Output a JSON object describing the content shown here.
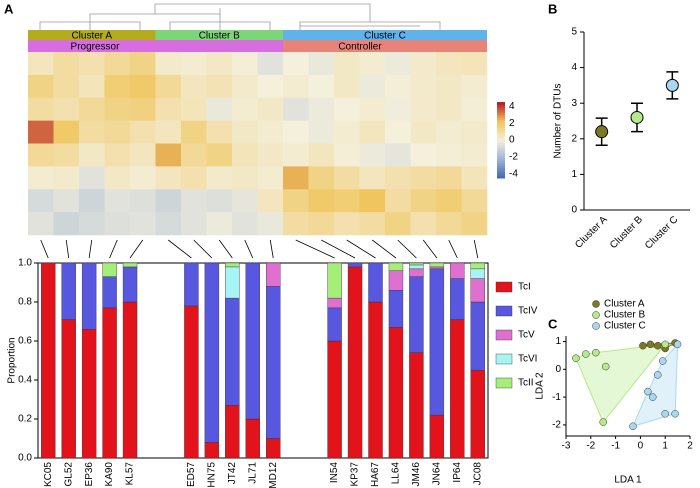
{
  "chart_data": [
    {
      "type": "heatmap",
      "panel_label": "A",
      "clusters": [
        {
          "label": "Cluster A",
          "color": "#b5ab1f"
        },
        {
          "label": "Cluster B",
          "color": "#7dd47a"
        },
        {
          "label": "Cluster C",
          "color": "#5fb2ea"
        }
      ],
      "outcomes": [
        {
          "label": "Progressor",
          "color": "#d76ee0"
        },
        {
          "label": "Controller",
          "color": "#e8837a"
        }
      ],
      "zlim": [
        -4.5,
        4.5
      ],
      "zticks": [
        4,
        2,
        0,
        -2,
        -4
      ],
      "values": [
        [
          0.5,
          1,
          0.8,
          1.2,
          1.5,
          0.3,
          0.2,
          0.4,
          0.1,
          -0.5,
          0,
          -0.3,
          0.4,
          0.2,
          -0.2,
          0.3,
          0.5,
          0.6
        ],
        [
          1.5,
          1,
          0.6,
          1.8,
          2,
          1.2,
          0.5,
          0.7,
          0.3,
          0,
          0.2,
          0,
          0.4,
          -0.2,
          0.1,
          0.3,
          0.4,
          0.2
        ],
        [
          1,
          0.8,
          1.2,
          1.5,
          1.6,
          0.8,
          0.6,
          -0.3,
          0.2,
          0.4,
          -0.5,
          -0.2,
          0,
          0.2,
          -0.1,
          0.3,
          0.4,
          0.1
        ],
        [
          3.5,
          2,
          1,
          1.2,
          0.8,
          0.5,
          1.5,
          0.8,
          0.4,
          0.2,
          0,
          -0.2,
          0.2,
          0.5,
          0,
          0.4,
          0.2,
          0.3
        ],
        [
          1.2,
          1,
          0.4,
          0.8,
          0.5,
          2.5,
          1.2,
          1.5,
          0.6,
          0.4,
          0.2,
          0.5,
          0.1,
          -0.2,
          -0.4,
          0,
          0.1,
          0.2
        ],
        [
          0.2,
          0.3,
          -0.5,
          0.4,
          0.2,
          0.5,
          0.8,
          0.3,
          0.4,
          0.2,
          2.5,
          1.5,
          1,
          0.5,
          0.8,
          1,
          1.2,
          0.6
        ],
        [
          -0.8,
          -0.5,
          -1,
          -0.5,
          -0.6,
          -1,
          -0.5,
          -0.6,
          -0.4,
          0.5,
          1.5,
          2,
          1.8,
          2.2,
          1,
          1.5,
          1.8,
          1.2
        ],
        [
          -0.5,
          -1,
          -0.8,
          -0.6,
          -0.5,
          -0.8,
          -0.5,
          -0.2,
          -0.5,
          -0.3,
          1,
          1.2,
          0.8,
          1,
          1.5,
          0.8,
          1.2,
          1.5
        ]
      ]
    },
    {
      "type": "stacked_bar",
      "y_label": "Proportion",
      "categories": [
        "KC05",
        "GL52",
        "EP36",
        "KA90",
        "KL57",
        null,
        null,
        "ED57",
        "HN75",
        "JT42",
        "JL71",
        "MD12",
        null,
        null,
        "IN54",
        "KP37",
        "HA67",
        "LL64",
        "JM46",
        "JN64",
        "IP64",
        "JC08"
      ],
      "ylim": [
        0,
        1
      ],
      "yticks": [
        {
          "value": 0,
          "label": "0.0"
        },
        0.2,
        0.4,
        0.6,
        0.8,
        {
          "value": 1,
          "label": "1.0"
        }
      ],
      "series": [
        {
          "name": "TcI",
          "color": "#e3131b",
          "values": [
            1,
            0.71,
            0.66,
            0.77,
            0.8,
            null,
            null,
            0.78,
            0.08,
            0.27,
            0.2,
            0.1,
            null,
            null,
            0.6,
            0.98,
            0.8,
            0.67,
            0.54,
            0.22,
            0.71,
            0.45
          ]
        },
        {
          "name": "TcIV",
          "color": "#5757e0",
          "values": [
            0,
            0.29,
            0.34,
            0.16,
            0.18,
            null,
            null,
            0.22,
            0.92,
            0.55,
            0.8,
            0.78,
            null,
            null,
            0.17,
            0.02,
            0.2,
            0.19,
            0.39,
            0.75,
            0.21,
            0.35
          ]
        },
        {
          "name": "TcV",
          "color": "#e070d0",
          "values": [
            0,
            0,
            0,
            0,
            0,
            null,
            null,
            0,
            0,
            0,
            0,
            0.12,
            null,
            null,
            0.05,
            0,
            0,
            0.1,
            0.04,
            0.01,
            0.08,
            0.12
          ]
        },
        {
          "name": "TcVI",
          "color": "#a8f4f4",
          "values": [
            0,
            0,
            0,
            0,
            0,
            null,
            null,
            0,
            0,
            0.16,
            0,
            0,
            null,
            null,
            0,
            0,
            0,
            0,
            0.02,
            0,
            0,
            0.05
          ]
        },
        {
          "name": "TcII",
          "color": "#a6ee7a",
          "values": [
            0,
            0,
            0,
            0.07,
            0.02,
            null,
            null,
            0,
            0,
            0.02,
            0,
            0,
            null,
            null,
            0.18,
            0,
            0,
            0.04,
            0.01,
            0.02,
            0,
            0.03
          ]
        }
      ]
    },
    {
      "type": "dot_error",
      "panel_label": "B",
      "y_label": "Number of DTUs",
      "categories": [
        "Cluster A",
        "Cluster B",
        "Cluster C"
      ],
      "values": [
        2.2,
        2.6,
        3.5
      ],
      "errors": [
        0.38,
        0.4,
        0.38
      ],
      "colors": [
        "#7b7a1e",
        "#b4ea8a",
        "#a8d8f0"
      ],
      "ylim": [
        0,
        5
      ],
      "yticks": [
        0,
        1,
        2,
        3,
        4,
        5
      ]
    },
    {
      "type": "scatter",
      "panel_label": "C",
      "x_label": "LDA 1",
      "y_label": "LDA 2",
      "xlim": [
        -3,
        2
      ],
      "xticks": [
        -3,
        -2,
        -1,
        0,
        1,
        2
      ],
      "ylim": [
        -2.4,
        1.2
      ],
      "yticks": [
        -2,
        -1,
        0,
        1
      ],
      "series": [
        {
          "name": "Cluster A",
          "color": "#7b7a1e",
          "x": [
            0.1,
            0.4,
            0.7,
            1.0,
            1.4
          ],
          "y": [
            0.85,
            0.9,
            0.85,
            0.75,
            0.95
          ]
        },
        {
          "name": "Cluster B",
          "color": "#b4ea8a",
          "x": [
            -2.6,
            -2.2,
            -1.8,
            -1.4,
            -1.5,
            1.0
          ],
          "y": [
            0.4,
            0.55,
            0.6,
            0.1,
            -1.9,
            0.9
          ]
        },
        {
          "name": "Cluster C",
          "color": "#a8d8f0",
          "x": [
            -0.3,
            0.3,
            0.5,
            0.7,
            1.0,
            1.4,
            0.9,
            1.5
          ],
          "y": [
            -2.05,
            -0.8,
            -1.0,
            -0.2,
            -1.6,
            -1.6,
            0.3,
            0.9
          ]
        }
      ]
    }
  ]
}
